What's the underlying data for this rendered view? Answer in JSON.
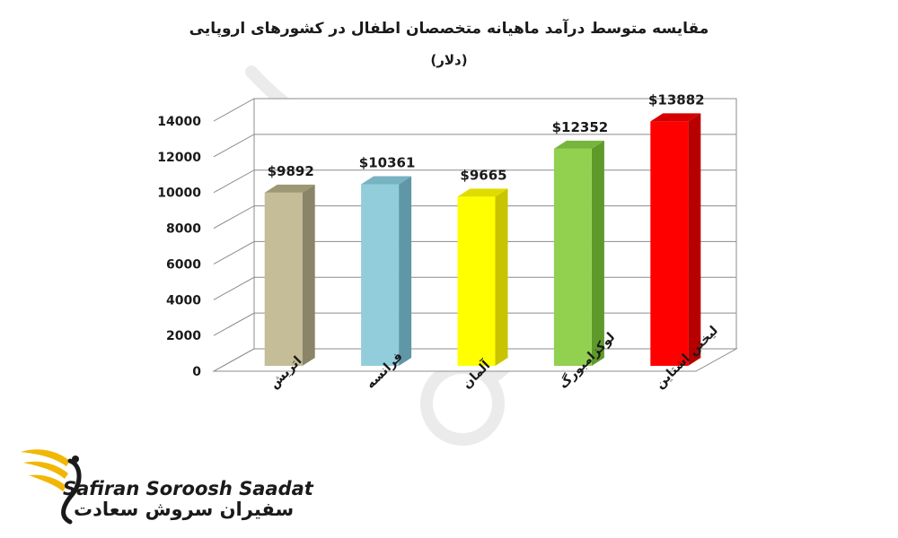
{
  "chart_data": {
    "type": "bar",
    "title": "مقایسه متوسط درآمد ماهیانه متخصصان اطفال در کشورهای اروپایی",
    "subtitle": "(دلار)",
    "categories": [
      "اتریش",
      "فرانسه",
      "آلمان",
      "لوکزامبورگ",
      "لیختن اشتاین"
    ],
    "values": [
      9892,
      10361,
      9665,
      12352,
      13882
    ],
    "value_labels": [
      "$9892",
      "$10361",
      "$9665",
      "$12352",
      "$13882"
    ],
    "y_ticks": [
      0,
      2000,
      4000,
      6000,
      8000,
      10000,
      12000,
      14000
    ],
    "ylim": [
      0,
      14000
    ],
    "grid": true,
    "three_d": true,
    "legend": "none",
    "colors": {
      "bar_fronts": [
        "#c4bd97",
        "#92cddc",
        "#ffff00",
        "#92d050",
        "#ff0000"
      ],
      "bar_sides": [
        "#8a8468",
        "#5f97a6",
        "#c9c400",
        "#5e9a2a",
        "#b80000"
      ],
      "bar_tops": [
        "#9e9774",
        "#78b3c2",
        "#e0dc00",
        "#76b43c",
        "#d40000"
      ],
      "grid": "#8c8c8c",
      "text": "#1a1a1a"
    }
  },
  "logo": {
    "name_en": "Safiran Soroosh Saadat",
    "name_fa": "سفیران سروش سعادت",
    "accent": "#f2b705"
  }
}
